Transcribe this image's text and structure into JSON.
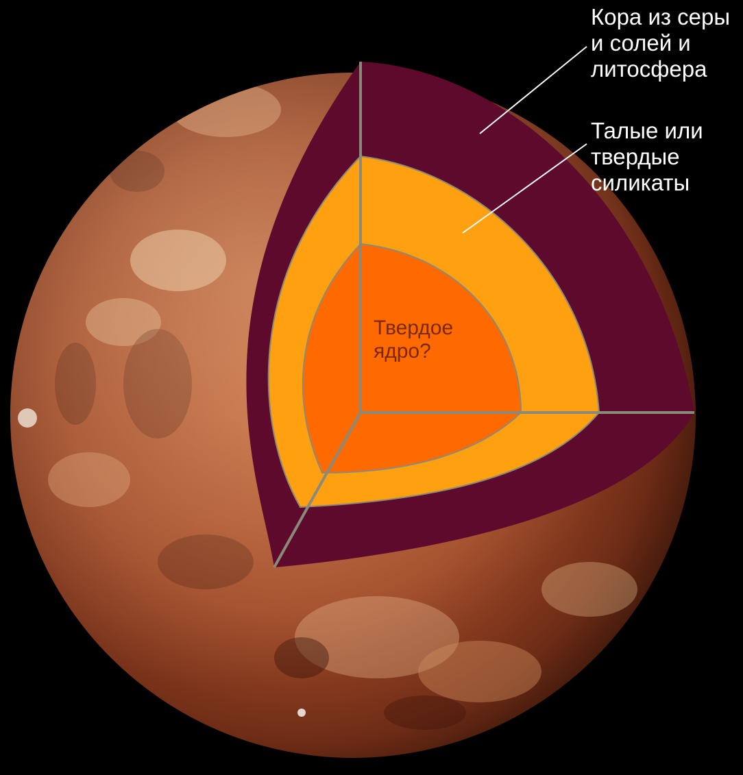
{
  "labels": {
    "crust": {
      "line1": "Кора из серы",
      "line2": "и солей и",
      "line3": "литосфера"
    },
    "mantle": {
      "line1": "Талые или",
      "line2": "твердые",
      "line3": "силикаты"
    },
    "core": {
      "line1": "Твердое",
      "line2": "ядро?"
    }
  },
  "colors": {
    "background": "#000000",
    "crust_layer": "#5e0a2c",
    "mantle_layer": "#ffa010",
    "core_layer": "#ff6a00",
    "section_edges": "#8a8a7a",
    "label_text": "#ffffff",
    "core_text": "#7a2800",
    "planet_surface": "#a8502c"
  }
}
